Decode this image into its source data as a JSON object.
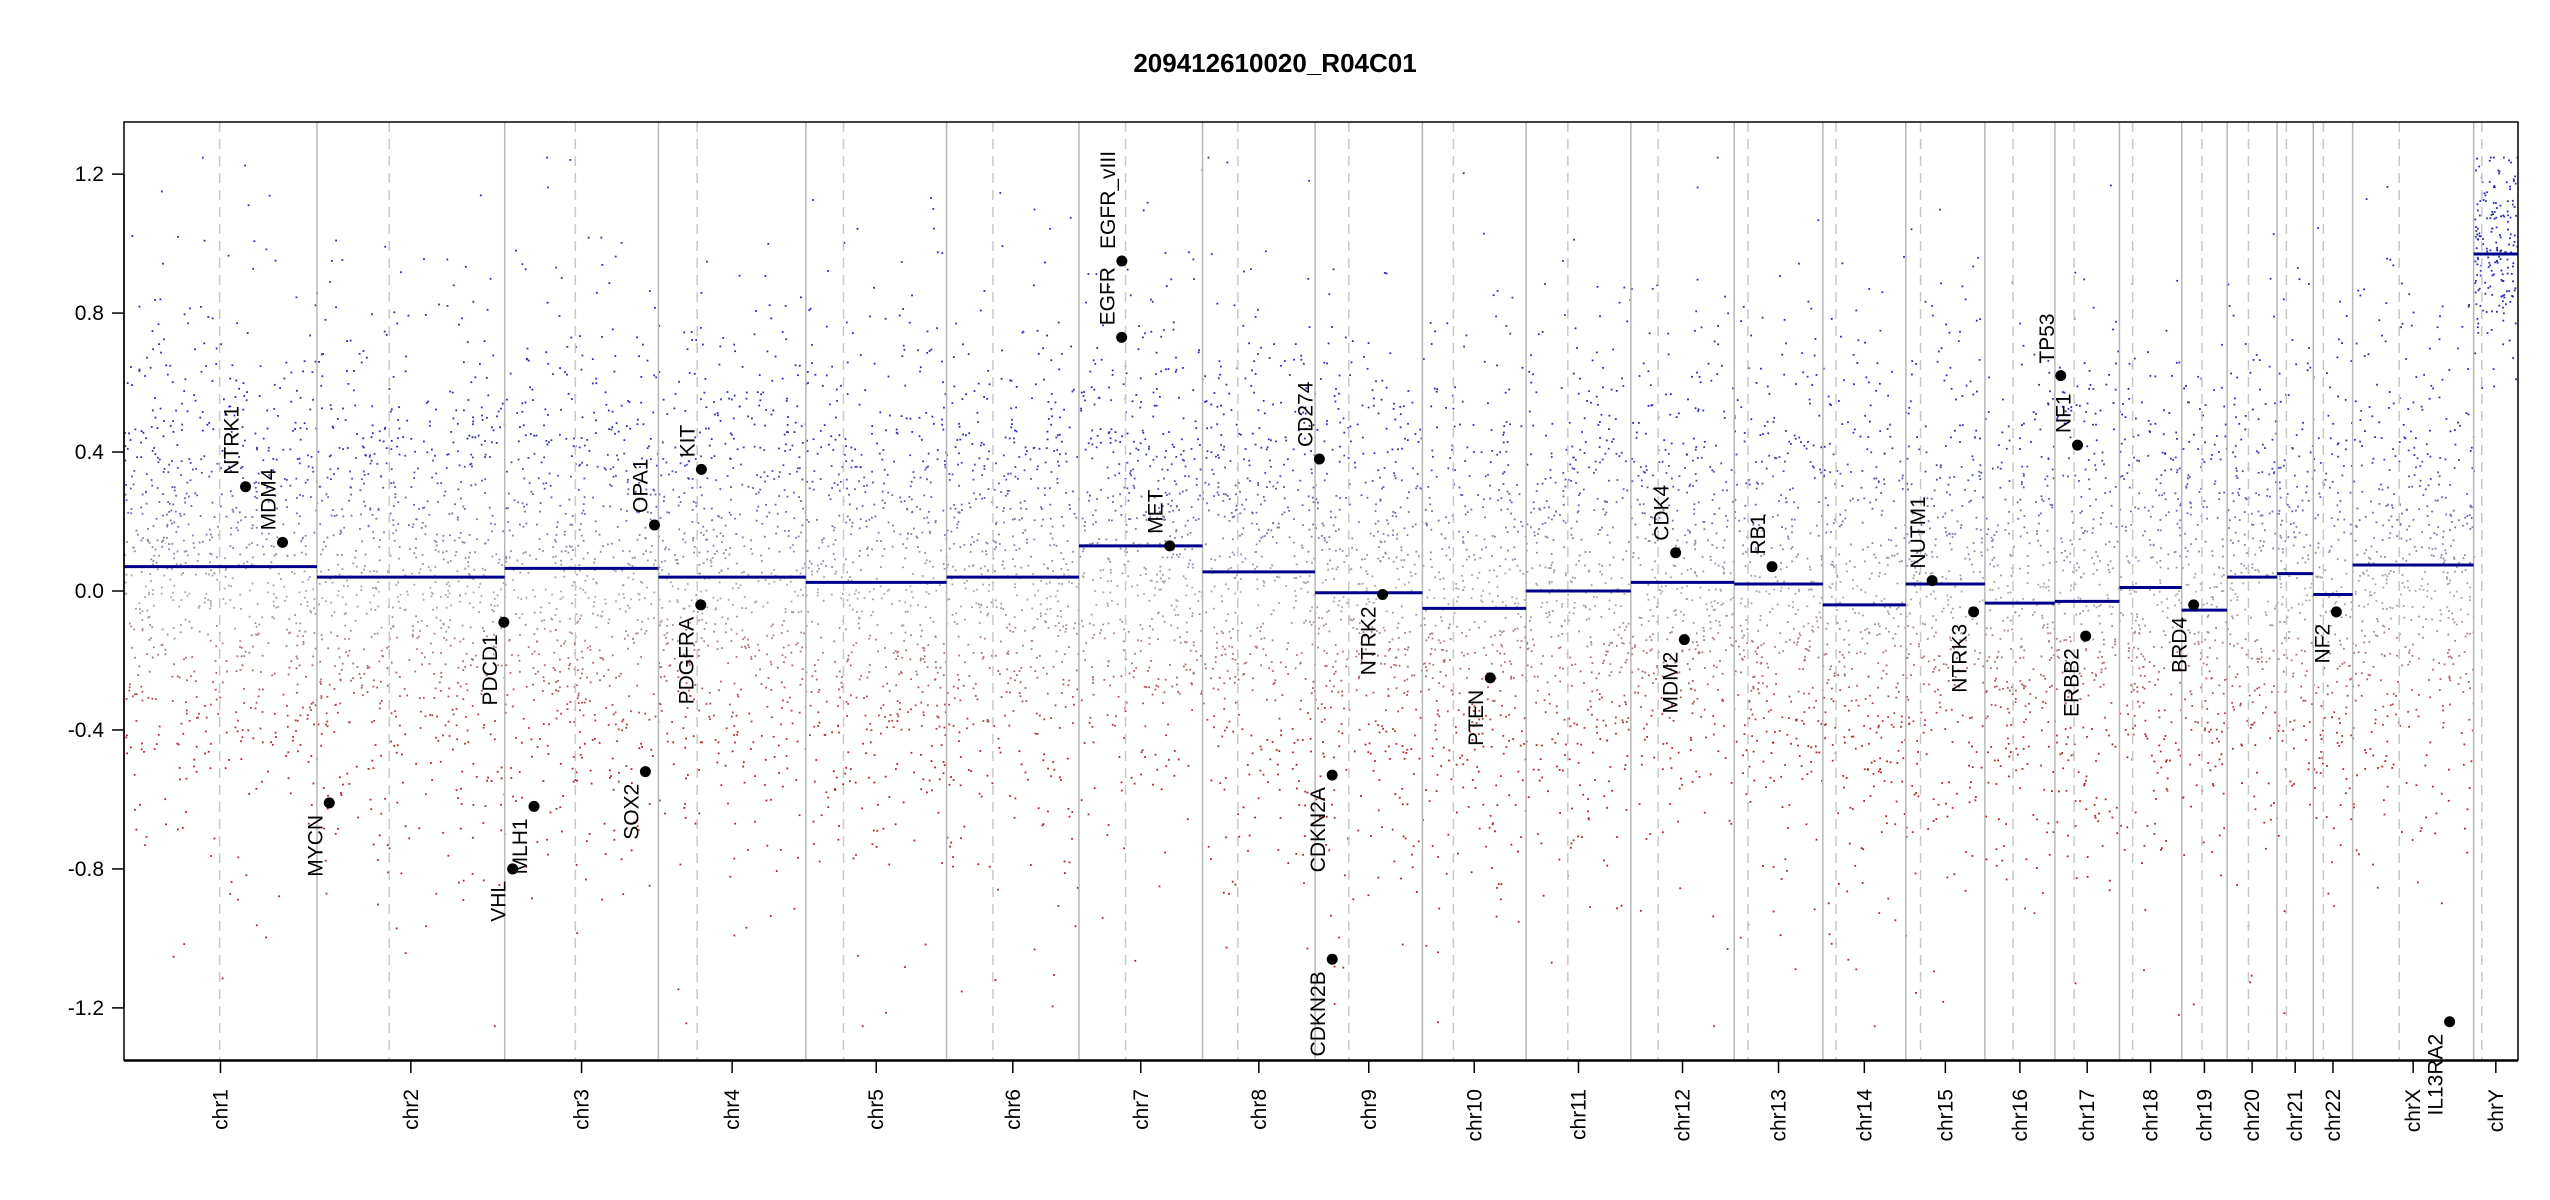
{
  "chart_data": {
    "type": "scatter",
    "title": "209412610020_R04C01",
    "xlabel": "",
    "ylabel": "",
    "ylim": [
      -1.35,
      1.35
    ],
    "yticks": [
      -1.2,
      -0.8,
      -0.4,
      0.0,
      0.4,
      0.8,
      1.2
    ],
    "ytick_labels": [
      "-1.2",
      "-0.8",
      "-0.4",
      "0.0",
      "0.4",
      "0.8",
      "1.2"
    ],
    "grid": false,
    "colors": {
      "gain": "#2b2bb5",
      "loss": "#b22222",
      "segment": "#00008b",
      "neutral": "#aaaaaa"
    },
    "chromosomes": [
      {
        "name": "chr1",
        "start": 0,
        "end": 248.9,
        "centromere": 123.4,
        "segment": 0.07
      },
      {
        "name": "chr2",
        "start": 248.9,
        "end": 491.1,
        "centromere": 342.2,
        "segment": 0.04
      },
      {
        "name": "chr3",
        "start": 491.1,
        "end": 689.4,
        "centromere": 582.2,
        "segment": 0.065
      },
      {
        "name": "chr4",
        "start": 689.4,
        "end": 879.6,
        "centromere": 739.4,
        "segment": 0.04
      },
      {
        "name": "chr5",
        "start": 879.6,
        "end": 1061.1,
        "centromere": 928.1,
        "segment": 0.025
      },
      {
        "name": "chr6",
        "start": 1061.1,
        "end": 1231.9,
        "centromere": 1120.9,
        "segment": 0.04
      },
      {
        "name": "chr7",
        "start": 1231.9,
        "end": 1391.3,
        "centromere": 1292.0,
        "segment": 0.13
      },
      {
        "name": "chr8",
        "start": 1391.3,
        "end": 1536.5,
        "centromere": 1436.8,
        "segment": 0.055
      },
      {
        "name": "chr9",
        "start": 1536.5,
        "end": 1674.9,
        "centromere": 1580.0,
        "segment": -0.005
      },
      {
        "name": "chr10",
        "start": 1674.9,
        "end": 1808.7,
        "centromere": 1714.9,
        "segment": -0.05
      },
      {
        "name": "chr11",
        "start": 1808.7,
        "end": 1943.8,
        "centromere": 1862.5,
        "segment": 0.0
      },
      {
        "name": "chr12",
        "start": 1943.8,
        "end": 2077.1,
        "centromere": 1979.0,
        "segment": 0.025
      },
      {
        "name": "chr13",
        "start": 2077.1,
        "end": 2191.5,
        "centromere": 2094.8,
        "segment": 0.02
      },
      {
        "name": "chr14",
        "start": 2191.5,
        "end": 2298.5,
        "centromere": 2208.5,
        "segment": -0.04
      },
      {
        "name": "chr15",
        "start": 2298.5,
        "end": 2400.5,
        "centromere": 2317.5,
        "segment": 0.02
      },
      {
        "name": "chr16",
        "start": 2400.5,
        "end": 2490.8,
        "centromere": 2436.8,
        "segment": -0.035
      },
      {
        "name": "chr17",
        "start": 2490.8,
        "end": 2574.1,
        "centromere": 2515.6,
        "segment": -0.03
      },
      {
        "name": "chr18",
        "start": 2574.1,
        "end": 2654.4,
        "centromere": 2591.1,
        "segment": 0.01
      },
      {
        "name": "chr19",
        "start": 2654.4,
        "end": 2713.0,
        "centromere": 2680.5,
        "segment": -0.055
      },
      {
        "name": "chr20",
        "start": 2713.0,
        "end": 2777.4,
        "centromere": 2740.5,
        "segment": 0.04
      },
      {
        "name": "chr21",
        "start": 2777.4,
        "end": 2824.1,
        "centromere": 2789.4,
        "segment": 0.05
      },
      {
        "name": "chr22",
        "start": 2824.1,
        "end": 2874.9,
        "centromere": 2837.1,
        "segment": -0.01
      },
      {
        "name": "chrX",
        "start": 2874.9,
        "end": 3031.0,
        "centromere": 2935.0,
        "segment": 0.075
      },
      {
        "name": "chrY",
        "start": 3031.0,
        "end": 3088.2,
        "centromere": 3041.5,
        "segment": 0.97
      }
    ],
    "genes": [
      {
        "name": "NTRK1",
        "x": 156.8,
        "y": 0.3
      },
      {
        "name": "MDM4",
        "x": 204.5,
        "y": 0.14
      },
      {
        "name": "MYCN",
        "x": 264.8,
        "y": -0.61
      },
      {
        "name": "PDCD1",
        "x": 490.0,
        "y": -0.09
      },
      {
        "name": "VHL",
        "x": 501.3,
        "y": -0.8
      },
      {
        "name": "MLH1",
        "x": 528.9,
        "y": -0.62
      },
      {
        "name": "SOX2",
        "x": 672.6,
        "y": -0.52
      },
      {
        "name": "OPA1",
        "x": 684.3,
        "y": 0.19
      },
      {
        "name": "KIT",
        "x": 744.8,
        "y": 0.35
      },
      {
        "name": "PDGFRA",
        "x": 744.0,
        "y": -0.04
      },
      {
        "name": "EGFR",
        "x": 1287.0,
        "y": 0.73
      },
      {
        "name": "EGFR_vIII",
        "x": 1287.2,
        "y": 0.95
      },
      {
        "name": "MET",
        "x": 1349.0,
        "y": 0.13
      },
      {
        "name": "CD274",
        "x": 1542.0,
        "y": 0.38
      },
      {
        "name": "CDKN2A",
        "x": 1558.5,
        "y": -0.53
      },
      {
        "name": "CDKN2B",
        "x": 1558.6,
        "y": -1.06
      },
      {
        "name": "NTRK2",
        "x": 1623.6,
        "y": -0.01
      },
      {
        "name": "PTEN",
        "x": 1762.4,
        "y": -0.25
      },
      {
        "name": "CDK4",
        "x": 2001.6,
        "y": 0.11
      },
      {
        "name": "MDM2",
        "x": 2012.8,
        "y": -0.14
      },
      {
        "name": "RB1",
        "x": 2125.9,
        "y": 0.07
      },
      {
        "name": "NUTM1",
        "x": 2332.4,
        "y": 0.03
      },
      {
        "name": "NTRK3",
        "x": 2386.0,
        "y": -0.06
      },
      {
        "name": "TP53",
        "x": 2498.4,
        "y": 0.62
      },
      {
        "name": "NF1",
        "x": 2520.0,
        "y": 0.42
      },
      {
        "name": "ERBB2",
        "x": 2530.5,
        "y": -0.13
      },
      {
        "name": "BRD4",
        "x": 2669.8,
        "y": -0.04
      },
      {
        "name": "NF2",
        "x": 2853.9,
        "y": -0.06
      },
      {
        "name": "IL13RA2",
        "x": 3000.0,
        "y": -1.24
      }
    ]
  }
}
